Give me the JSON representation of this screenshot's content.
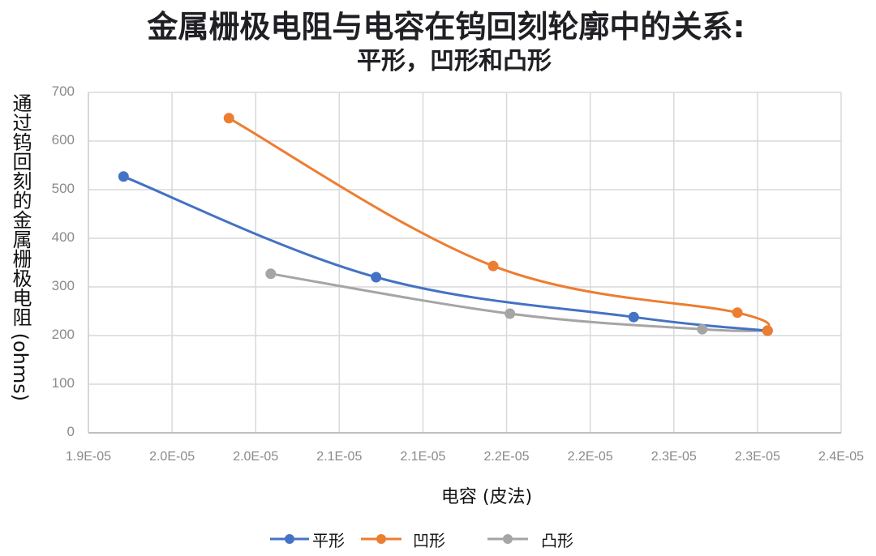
{
  "chart_data": {
    "type": "line",
    "title": "金属栅极电阻与电容在钨回刻轮廓中的关系:",
    "subtitle": "平形，凹形和凸形",
    "xlabel": "电容 (皮法)",
    "ylabel": "通过钨回刻的金属栅极电阻 (ohms)",
    "xlim": [
      1.9e-05,
      2.4e-05
    ],
    "ylim": [
      0,
      700
    ],
    "x_ticks": [
      "1.9E-05",
      "2.0E-05",
      "2.0E-05",
      "2.1E-05",
      "2.1E-05",
      "2.2E-05",
      "2.2E-05",
      "2.3E-05",
      "2.3E-05",
      "2.4E-05"
    ],
    "x_tick_values": [
      1.9e-05,
      1.95e-05,
      2e-05,
      2.05e-05,
      2.1e-05,
      2.15e-05,
      2.2e-05,
      2.25e-05,
      2.3e-05,
      2.35e-05
    ],
    "y_ticks": [
      "0",
      "100",
      "200",
      "300",
      "400",
      "500",
      "600",
      "700"
    ],
    "grid": true,
    "legend_position": "bottom",
    "smooth": true,
    "series": [
      {
        "name": "平形",
        "color": "#4472C4",
        "x": [
          1.921e-05,
          2.072e-05,
          2.226e-05,
          2.306e-05
        ],
        "y": [
          527,
          320,
          238,
          210
        ]
      },
      {
        "name": "凹形",
        "color": "#ED7D31",
        "x": [
          1.984e-05,
          2.142e-05,
          2.288e-05,
          2.306e-05
        ],
        "y": [
          647,
          343,
          247,
          210
        ]
      },
      {
        "name": "凸形",
        "color": "#A5A5A5",
        "x": [
          2.009e-05,
          2.152e-05,
          2.267e-05,
          2.306e-05
        ],
        "y": [
          327,
          245,
          213,
          210
        ]
      }
    ]
  }
}
